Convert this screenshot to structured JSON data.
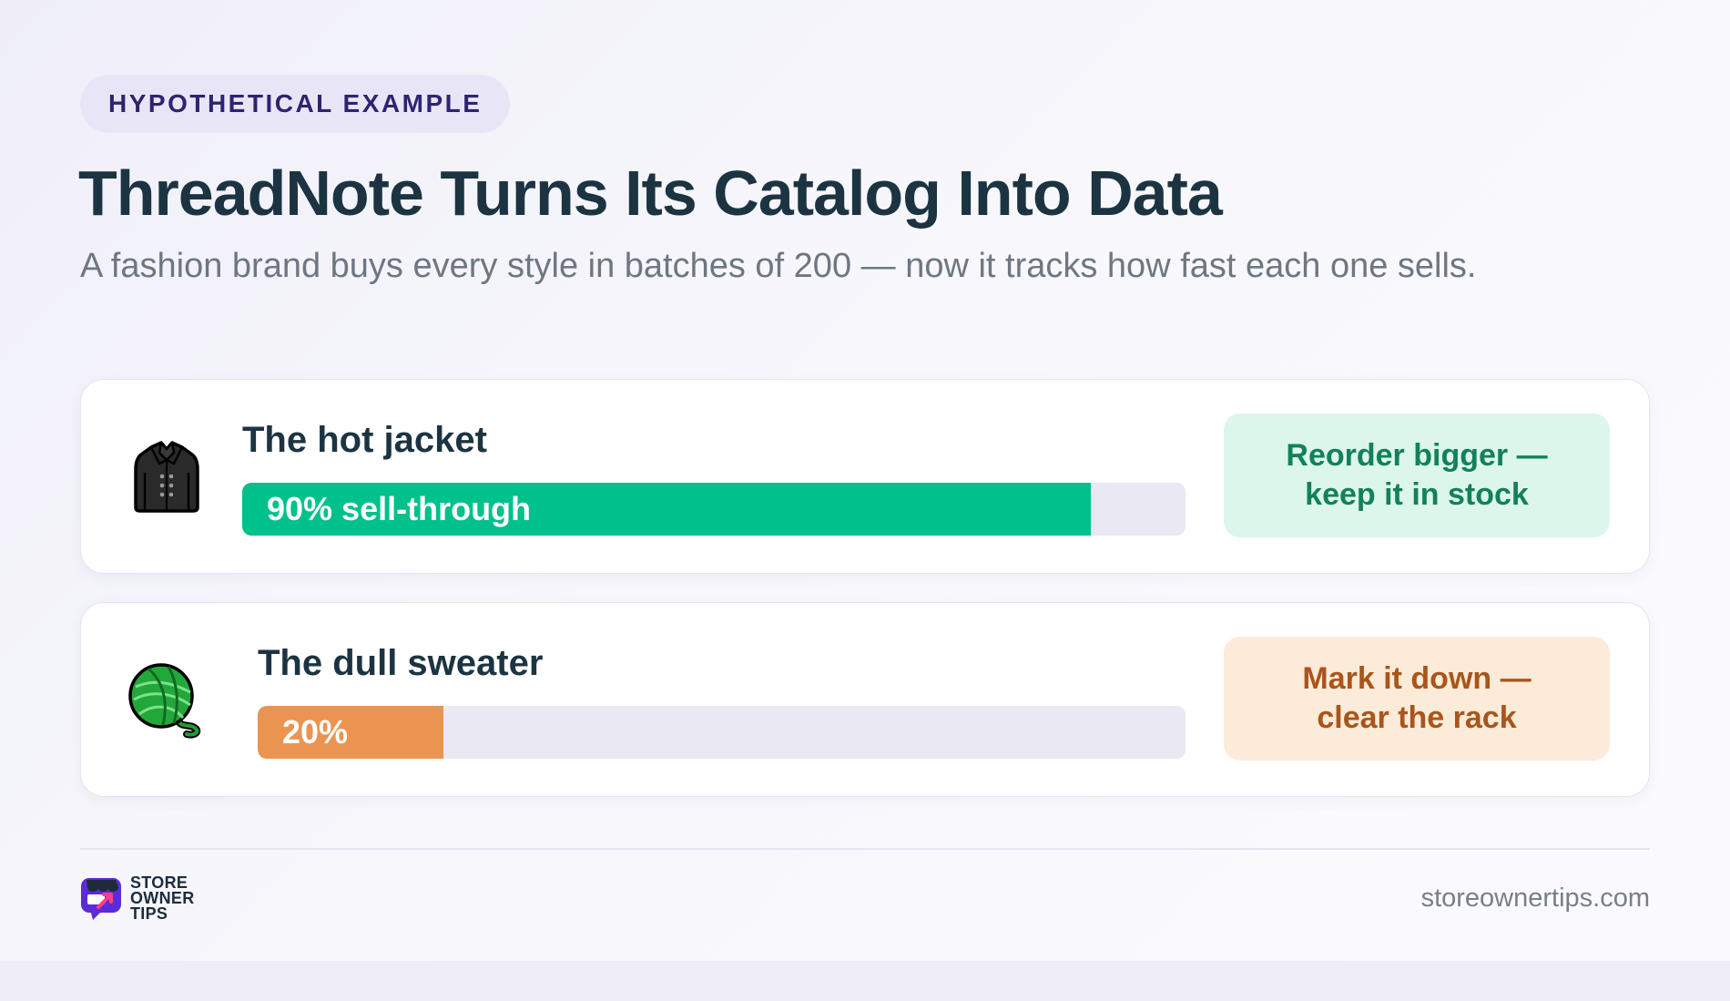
{
  "badge": "HYPOTHETICAL EXAMPLE",
  "title": "ThreadNote Turns Its Catalog Into Data",
  "subtitle": "A fashion brand buys every style in batches of 200 — now it tracks how fast each one sells.",
  "items": [
    {
      "icon": "jacket-icon",
      "label": "The hot jacket",
      "bar_text": "90% sell-through",
      "sell_through": 0.9,
      "bar_color": "#00c08b",
      "action_line1": "Reorder bigger —",
      "action_line2": "keep it in stock",
      "action_bg": "#dcf6ec",
      "action_color": "#138158"
    },
    {
      "icon": "yarn-ball-icon",
      "label": "The dull sweater",
      "bar_text": "20%",
      "sell_through": 0.2,
      "bar_color": "#eb9451",
      "action_line1": "Mark it down —",
      "action_line2": "clear the rack",
      "action_bg": "#fcebd9",
      "action_color": "#a9551b"
    }
  ],
  "footer": {
    "logo_line1": "STORE",
    "logo_line2": "OWNER",
    "logo_line3": "TIPS",
    "website": "storeownertips.com"
  }
}
